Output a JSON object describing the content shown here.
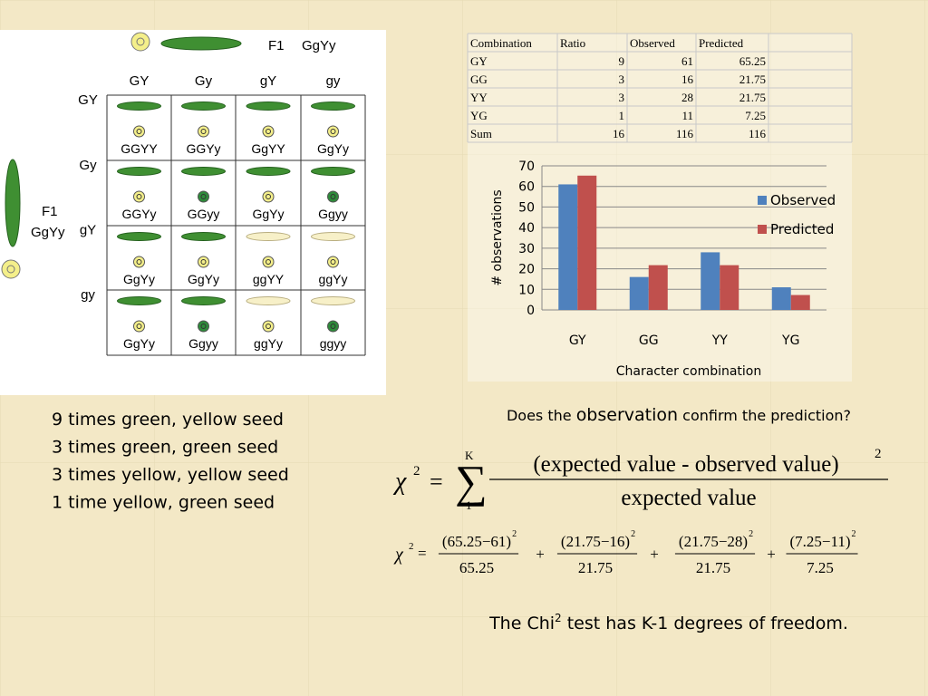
{
  "punnett": {
    "parent_top": "F1",
    "parent_top_genotype": "GgYy",
    "parent_left": "F1",
    "parent_left_genotype": "GgYy",
    "columns": [
      "GY",
      "Gy",
      "gY",
      "gy"
    ],
    "rows": [
      "GY",
      "Gy",
      "gY",
      "gy"
    ],
    "cells": [
      [
        "GGYY",
        "GGYy",
        "GgYY",
        "GgYy"
      ],
      [
        "GGYy",
        "GGyy",
        "GgYy",
        "Ggyy"
      ],
      [
        "GgYy",
        "GgYy",
        "ggYY",
        "ggYy"
      ],
      [
        "GgYy",
        "Ggyy",
        "ggYy",
        "ggyy"
      ]
    ]
  },
  "table": {
    "header": [
      "Combination",
      "Ratio",
      "Observed",
      "Predicted"
    ],
    "rows": [
      [
        "GY",
        9,
        61,
        65.25
      ],
      [
        "GG",
        3,
        16,
        21.75
      ],
      [
        "YY",
        3,
        28,
        21.75
      ],
      [
        "YG",
        1,
        11,
        7.25
      ],
      [
        "Sum",
        16,
        116,
        116
      ]
    ]
  },
  "chart_data": {
    "type": "bar",
    "y_label": "# observations",
    "x_label": "Character combination",
    "categories": [
      "GY",
      "GG",
      "YY",
      "YG"
    ],
    "series": [
      {
        "name": "Observed",
        "color": "#4f81bd",
        "values": [
          61,
          16,
          28,
          11
        ]
      },
      {
        "name": "Predicted",
        "color": "#c0504d",
        "values": [
          65.25,
          21.75,
          21.75,
          7.25
        ]
      }
    ],
    "ylim": [
      0,
      70
    ],
    "yticks": [
      0,
      10,
      20,
      30,
      40,
      50,
      60,
      70
    ],
    "grid": true,
    "legend": "right"
  },
  "ratios": [
    "9 times green, yellow seed",
    "3 times green, green seed",
    "3 times yellow, yellow seed",
    "1 time yellow, green seed"
  ],
  "question": {
    "before": "Does the ",
    "emphasis": "observation",
    "after": " confirm the prediction?"
  },
  "formula": {
    "lhs": "χ",
    "lhs_exp": "2",
    "equals": "=",
    "sum": "∑",
    "upper": "K",
    "lower": "1",
    "numerator": "(expected value - observed value)",
    "num_exp": "2",
    "denominator": "expected value"
  },
  "formula2": {
    "lhs": "χ",
    "lhs_exp": "2",
    "equals": "=",
    "plus": "+",
    "terms": [
      {
        "num": "(65.25−61)",
        "exp": "2",
        "den": "65.25"
      },
      {
        "num": "(21.75−16)",
        "exp": "2",
        "den": "21.75"
      },
      {
        "num": "(21.75−28)",
        "exp": "2",
        "den": "21.75"
      },
      {
        "num": "(7.25−11)",
        "exp": "2",
        "den": "7.25"
      }
    ]
  },
  "conclusion": {
    "before": "The Chi",
    "sup": "2",
    "after": " test has K-1 degrees of freedom."
  }
}
